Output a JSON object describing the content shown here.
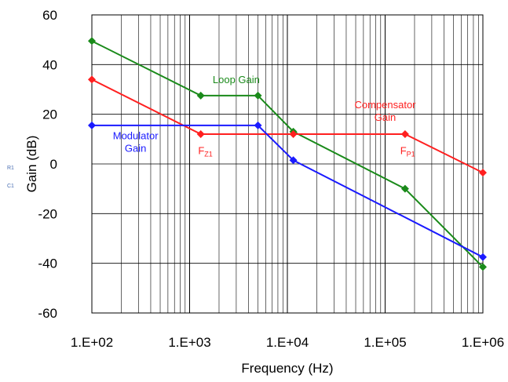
{
  "side_notes": [
    "R1",
    "C1"
  ],
  "chart_data": {
    "type": "line",
    "xlabel": "Frequency (Hz)",
    "ylabel": "Gain (dB)",
    "x_scale": "log",
    "xlim": [
      100,
      1000000
    ],
    "ylim": [
      -60,
      60
    ],
    "x_ticks": [
      100,
      1000,
      10000,
      100000,
      1000000
    ],
    "x_tick_labels": [
      "1.E+02",
      "1.E+03",
      "1.E+04",
      "1.E+05",
      "1.E+06"
    ],
    "y_ticks": [
      -60,
      -40,
      -20,
      0,
      20,
      40,
      60
    ],
    "y_tick_labels": [
      "-60",
      "-40",
      "-20",
      "0",
      "20",
      "40",
      "60"
    ],
    "grid": true,
    "series": [
      {
        "name": "Loop Gain",
        "color": "#1a8a1a",
        "x": [
          100,
          1300,
          5000,
          11500,
          160000,
          1000000
        ],
        "y": [
          49.5,
          27.5,
          27.5,
          13,
          -10,
          -41.5
        ]
      },
      {
        "name": "Compensator Gain",
        "color": "#ff2020",
        "x": [
          100,
          1300,
          11500,
          160000,
          1000000
        ],
        "y": [
          34,
          12,
          12,
          12,
          -3.5
        ]
      },
      {
        "name": "Modulator Gain",
        "color": "#1a1aff",
        "x": [
          100,
          5000,
          11500,
          1000000
        ],
        "y": [
          15.5,
          15.5,
          1.5,
          -37.5
        ]
      }
    ],
    "annotations": [
      {
        "id": "loop",
        "lines": [
          "Loop Gain"
        ],
        "color": "#1a8a1a",
        "x": 3000,
        "y": 32.5
      },
      {
        "id": "comp",
        "lines": [
          "Compensator",
          "Gain"
        ],
        "color": "#ff2020",
        "x": 100000,
        "y": 22.5
      },
      {
        "id": "mod",
        "lines": [
          "Modulator",
          "Gain"
        ],
        "color": "#1a1aff",
        "x": 280,
        "y": 10
      },
      {
        "id": "fz1",
        "main": "F",
        "sub": "Z1",
        "color": "#ff2020",
        "x": 1450,
        "y": 4
      },
      {
        "id": "fp1",
        "main": "F",
        "sub": "P1",
        "color": "#ff2020",
        "x": 170000,
        "y": 4
      }
    ]
  }
}
